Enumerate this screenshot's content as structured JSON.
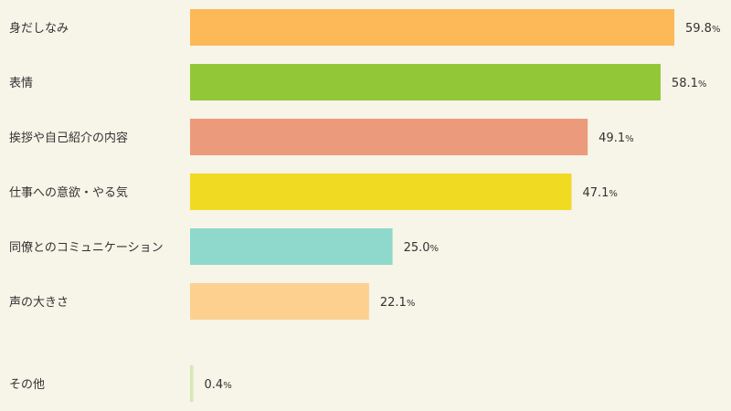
{
  "chart_data": {
    "type": "bar",
    "orientation": "horizontal",
    "title": "",
    "xlabel": "",
    "ylabel": "",
    "unit": "%",
    "xlim": [
      0,
      60
    ],
    "grid": false,
    "categories": [
      "身だしなみ",
      "表情",
      "挨拶や自己紹介の内容",
      "仕事への意欲・やる気",
      "同僚とのコミュニケーション",
      "声の大きさ",
      "その他"
    ],
    "values": [
      59.8,
      58.1,
      49.1,
      47.1,
      25.0,
      22.1,
      0.4
    ],
    "value_labels": [
      "59.8",
      "58.1",
      "49.1",
      "47.1",
      "25.0",
      "22.1",
      "0.4"
    ],
    "colors": [
      "#fdb858",
      "#92c737",
      "#ec9a7c",
      "#f1da22",
      "#8fd9cc",
      "#fdd090",
      "#d5e9b3"
    ]
  }
}
